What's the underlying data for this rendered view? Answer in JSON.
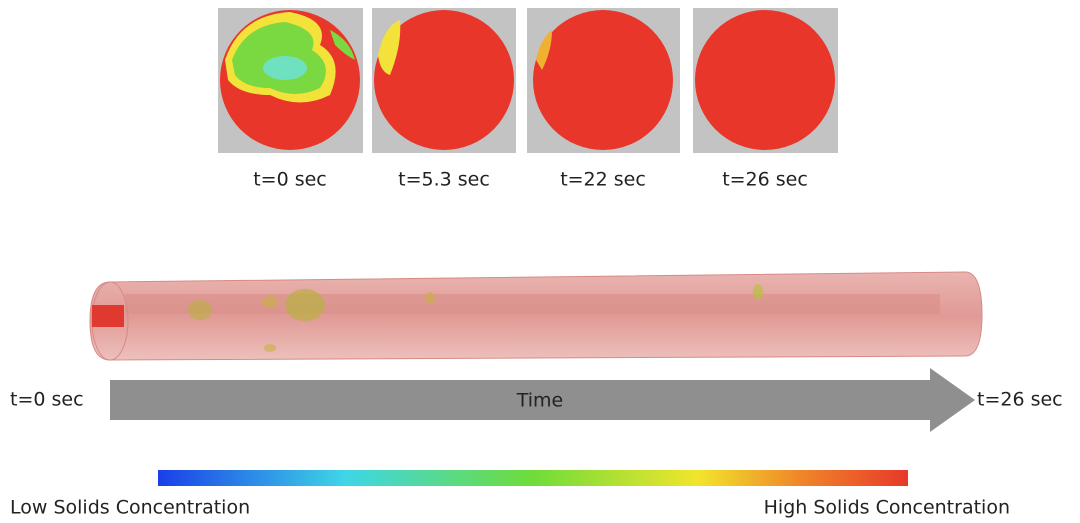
{
  "snapshots": [
    {
      "label": "t=0 sec"
    },
    {
      "label": "t=5.3 sec"
    },
    {
      "label": "t=22 sec"
    },
    {
      "label": "t=26 sec"
    }
  ],
  "timeline": {
    "start_label": "t=0 sec",
    "arrow_label": "Time",
    "end_label": "t=26 sec"
  },
  "colorbar": {
    "low_label": "Low Solids Concentration",
    "high_label": "High Solids Concentration"
  }
}
